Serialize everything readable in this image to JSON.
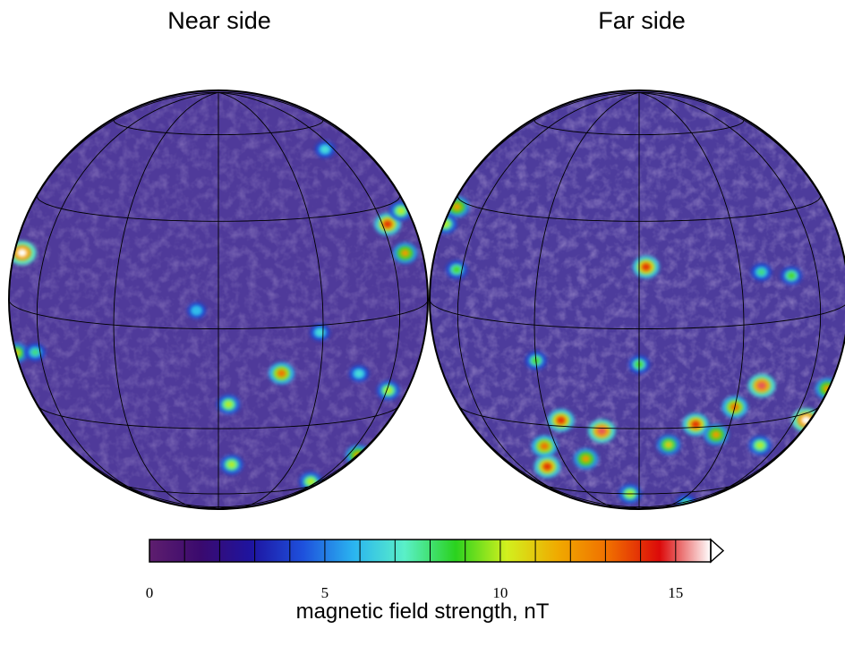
{
  "panels": [
    {
      "title": "Near side",
      "hotspots": [
        {
          "lon": -76,
          "lat": 15,
          "v": 16
        },
        {
          "lon": 63,
          "lat": 25,
          "v": 14
        },
        {
          "lon": 68,
          "lat": 16,
          "v": 12
        },
        {
          "lon": 78,
          "lat": 27,
          "v": 10
        },
        {
          "lon": -84,
          "lat": -14,
          "v": 11
        },
        {
          "lon": -63,
          "lat": -11,
          "v": 8
        },
        {
          "lon": 18,
          "lat": -13,
          "v": 13
        },
        {
          "lon": 3,
          "lat": -22,
          "v": 10
        },
        {
          "lon": 61,
          "lat": -22,
          "v": 10
        },
        {
          "lon": 44,
          "lat": -15,
          "v": 7
        },
        {
          "lon": 5,
          "lat": -44,
          "v": 10
        },
        {
          "lon": 52,
          "lat": -56,
          "v": 10
        },
        {
          "lon": 85,
          "lat": -48,
          "v": 12
        },
        {
          "lon": 29,
          "lat": -2,
          "v": 7
        },
        {
          "lon": 54,
          "lat": 51,
          "v": 7
        },
        {
          "lon": -6,
          "lat": 5,
          "v": 6
        }
      ]
    },
    {
      "title": "Far side",
      "hotspots": [
        {
          "lon": 2,
          "lat": 17,
          "v": 14
        },
        {
          "lon": -12,
          "lat": -31,
          "v": 15
        },
        {
          "lon": -25,
          "lat": -28,
          "v": 14
        },
        {
          "lon": -35,
          "lat": -38,
          "v": 13
        },
        {
          "lon": -40,
          "lat": -47,
          "v": 14
        },
        {
          "lon": -20,
          "lat": -42,
          "v": 12
        },
        {
          "lon": 18,
          "lat": -29,
          "v": 14
        },
        {
          "lon": 30,
          "lat": -24,
          "v": 13
        },
        {
          "lon": 38,
          "lat": -18,
          "v": 15
        },
        {
          "lon": 26,
          "lat": -33,
          "v": 12
        },
        {
          "lon": 10,
          "lat": -36,
          "v": 11
        },
        {
          "lon": 72,
          "lat": -33,
          "v": 16
        },
        {
          "lon": 80,
          "lat": -24,
          "v": 12
        },
        {
          "lon": -80,
          "lat": 28,
          "v": 12
        },
        {
          "lon": -86,
          "lat": 22,
          "v": 10
        },
        {
          "lon": -63,
          "lat": 12,
          "v": 9
        },
        {
          "lon": 48,
          "lat": -39,
          "v": 10
        },
        {
          "lon": -5,
          "lat": -60,
          "v": 10
        },
        {
          "lon": 60,
          "lat": -75,
          "v": 8
        },
        {
          "lon": -30,
          "lat": -10,
          "v": 9
        },
        {
          "lon": 37,
          "lat": 14,
          "v": 8
        },
        {
          "lon": 48,
          "lat": 12,
          "v": 9
        },
        {
          "lon": 0,
          "lat": -10,
          "v": 9
        }
      ]
    }
  ],
  "colorbar": {
    "label": "magnetic field strength, nT",
    "min": 0,
    "max": 16,
    "ticks": [
      0,
      5,
      10,
      15
    ],
    "extend": "max",
    "stops": [
      "#5e1e6e",
      "#3a0a6e",
      "#1e14a0",
      "#1e50dc",
      "#2ab4f0",
      "#5af0c8",
      "#2ad21e",
      "#d2f01e",
      "#f0aa00",
      "#f06e00",
      "#dc0a0a",
      "#ffffff"
    ]
  }
}
